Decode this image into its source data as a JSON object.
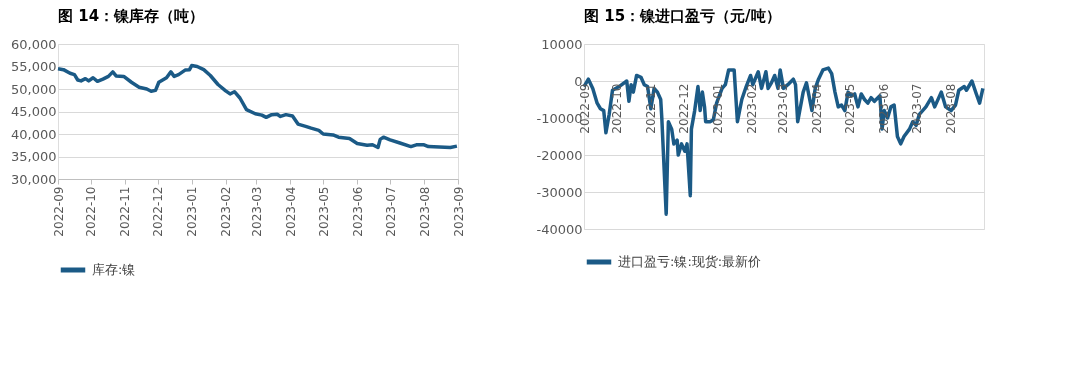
{
  "chart_data": [
    {
      "type": "line",
      "title": "图 14：镍库存（吨）",
      "xlim": [
        "2022-09",
        "2023-09"
      ],
      "xticks": [
        "2022-09",
        "2022-10",
        "2022-11",
        "2022-12",
        "2023-01",
        "2023-02",
        "2023-03",
        "2023-04",
        "2023-05",
        "2023-06",
        "2023-07",
        "2023-08",
        "2023-09"
      ],
      "ylim": [
        30000,
        60000
      ],
      "yticks": [
        {
          "value": 30000,
          "label": "30,000"
        },
        {
          "value": 35000,
          "label": "35,000"
        },
        {
          "value": 40000,
          "label": "40,000"
        },
        {
          "value": 45000,
          "label": "45,000"
        },
        {
          "value": 50000,
          "label": "50,000"
        },
        {
          "value": 55000,
          "label": "55,000"
        },
        {
          "value": 60000,
          "label": "60,000"
        }
      ],
      "grid": "y",
      "legend": "bottom",
      "line_style": "solid",
      "marker": "none",
      "x": [
        "2022-09-01",
        "2022-09-06",
        "2022-09-12",
        "2022-09-16",
        "2022-09-19",
        "2022-09-22",
        "2022-09-26",
        "2022-09-29",
        "2022-10-03",
        "2022-10-07",
        "2022-10-12",
        "2022-10-17",
        "2022-10-21",
        "2022-10-24",
        "2022-10-31",
        "2022-11-07",
        "2022-11-14",
        "2022-11-21",
        "2022-11-25",
        "2022-11-29",
        "2022-12-02",
        "2022-12-09",
        "2022-12-13",
        "2022-12-16",
        "2022-12-20",
        "2022-12-26",
        "2022-12-30",
        "2023-01-01",
        "2023-01-06",
        "2023-01-12",
        "2023-01-18",
        "2023-01-25",
        "2023-02-01",
        "2023-02-05",
        "2023-02-09",
        "2023-02-14",
        "2023-02-20",
        "2023-02-28",
        "2023-03-06",
        "2023-03-10",
        "2023-03-15",
        "2023-03-20",
        "2023-03-23",
        "2023-03-28",
        "2023-04-03",
        "2023-04-08",
        "2023-04-15",
        "2023-04-20",
        "2023-04-27",
        "2023-05-01",
        "2023-05-10",
        "2023-05-15",
        "2023-05-25",
        "2023-06-01",
        "2023-06-10",
        "2023-06-15",
        "2023-06-20",
        "2023-06-22",
        "2023-06-25",
        "2023-07-01",
        "2023-07-10",
        "2023-07-20",
        "2023-07-25",
        "2023-08-01",
        "2023-08-05",
        "2023-08-15",
        "2023-08-25",
        "2023-08-31"
      ],
      "series": [
        {
          "name": "库存:镍",
          "color": "#1b5a86",
          "values": [
            54500,
            54300,
            53500,
            53200,
            52000,
            51800,
            52300,
            51800,
            52500,
            51700,
            52200,
            52800,
            53800,
            52900,
            52800,
            51500,
            50400,
            50000,
            49500,
            49700,
            51500,
            52500,
            53800,
            52800,
            53200,
            54200,
            54300,
            55200,
            55000,
            54300,
            53000,
            51000,
            49600,
            48900,
            49400,
            48000,
            45400,
            44500,
            44200,
            43700,
            44300,
            44400,
            43900,
            44300,
            44000,
            42200,
            41700,
            41300,
            40800,
            40000,
            39800,
            39300,
            39000,
            37900,
            37500,
            37600,
            37000,
            38800,
            39300,
            38700,
            38000,
            37200,
            37600,
            37600,
            37200,
            37100,
            37000,
            37300
          ]
        }
      ]
    },
    {
      "type": "line",
      "title": "图 15：镍进口盈亏（元/吨）",
      "xlim": [
        "2022-09",
        "2023-09"
      ],
      "xticks": [
        "2022-09",
        "2022-10",
        "2022-11",
        "2022-12",
        "2023-01",
        "2023-02",
        "2023-03",
        "2023-04",
        "2023-05",
        "2023-06",
        "2023-07",
        "2023-08"
      ],
      "ylim": [
        -40000,
        10000
      ],
      "yticks": [
        -40000,
        -30000,
        -20000,
        -10000,
        0,
        10000
      ],
      "grid": "y",
      "legend": "bottom",
      "line_style": "solid",
      "marker": "none",
      "x": [
        "2022-09-01",
        "2022-09-05",
        "2022-09-09",
        "2022-09-13",
        "2022-09-16",
        "2022-09-19",
        "2022-09-21",
        "2022-09-24",
        "2022-09-27",
        "2022-10-03",
        "2022-10-10",
        "2022-10-12",
        "2022-10-14",
        "2022-10-16",
        "2022-10-19",
        "2022-10-23",
        "2022-10-26",
        "2022-10-29",
        "2022-11-01",
        "2022-11-04",
        "2022-11-07",
        "2022-11-10",
        "2022-11-11",
        "2022-11-15",
        "2022-11-17",
        "2022-11-20",
        "2022-11-22",
        "2022-11-25",
        "2022-11-26",
        "2022-11-29",
        "2022-12-02",
        "2022-12-04",
        "2022-12-07",
        "2022-12-08",
        "2022-12-11",
        "2022-12-14",
        "2022-12-16",
        "2022-12-18",
        "2022-12-20",
        "2022-12-21",
        "2022-12-25",
        "2022-12-28",
        "2022-12-31",
        "2023-01-05",
        "2023-01-08",
        "2023-01-11",
        "2023-01-14",
        "2023-01-16",
        "2023-01-19",
        "2023-01-23",
        "2023-01-27",
        "2023-01-31",
        "2023-02-02",
        "2023-02-07",
        "2023-02-10",
        "2023-02-14",
        "2023-02-16",
        "2023-02-19",
        "2023-02-22",
        "2023-02-25",
        "2023-02-27",
        "2023-03-02",
        "2023-03-06",
        "2023-03-11",
        "2023-03-13",
        "2023-03-15",
        "2023-03-20",
        "2023-03-23",
        "2023-03-28",
        "2023-03-31",
        "2023-04-03",
        "2023-04-07",
        "2023-04-12",
        "2023-04-15",
        "2023-04-18",
        "2023-04-21",
        "2023-04-24",
        "2023-04-27",
        "2023-04-30",
        "2023-05-03",
        "2023-05-06",
        "2023-05-09",
        "2023-05-12",
        "2023-05-15",
        "2023-05-18",
        "2023-05-21",
        "2023-05-24",
        "2023-05-29",
        "2023-05-31",
        "2023-06-02",
        "2023-06-05",
        "2023-06-08",
        "2023-06-11",
        "2023-06-14",
        "2023-06-17",
        "2023-06-20",
        "2023-06-25",
        "2023-06-28",
        "2023-07-01",
        "2023-07-04",
        "2023-07-10",
        "2023-07-15",
        "2023-07-18",
        "2023-07-24",
        "2023-07-28",
        "2023-08-02",
        "2023-08-06",
        "2023-08-09",
        "2023-08-14",
        "2023-08-16",
        "2023-08-21",
        "2023-08-25",
        "2023-08-28",
        "2023-08-31"
      ],
      "series": [
        {
          "name": "进口盈亏:镍:现货:最新价",
          "color": "#1b5a86",
          "values": [
            -1500,
            500,
            -2000,
            -6000,
            -7500,
            -8000,
            -14000,
            -9000,
            -2500,
            -1500,
            0,
            -5500,
            -1000,
            -3000,
            1500,
            1000,
            -1000,
            -1500,
            -7500,
            -2000,
            -3000,
            -5000,
            -10000,
            -36000,
            -11000,
            -13000,
            -17000,
            -16000,
            -20000,
            -17000,
            -19000,
            -17000,
            -31000,
            -13000,
            -8000,
            -1500,
            -8000,
            -3000,
            -7000,
            -11000,
            -11000,
            -10500,
            -6000,
            -2000,
            -1000,
            3000,
            3000,
            3000,
            -11000,
            -5000,
            -1500,
            1500,
            -1000,
            2500,
            -2000,
            2500,
            -2000,
            -500,
            1500,
            -2000,
            3000,
            -2000,
            -1000,
            500,
            -1000,
            -11000,
            -3000,
            -500,
            -8000,
            -2000,
            500,
            3000,
            3500,
            2000,
            -3000,
            -7000,
            -6500,
            -8000,
            -3000,
            -4000,
            -3500,
            -7000,
            -3500,
            -5000,
            -6000,
            -4500,
            -5500,
            -4000,
            -13000,
            -8000,
            -10000,
            -7000,
            -6500,
            -15000,
            -17000,
            -15000,
            -13000,
            -11000,
            -12000,
            -9000,
            -7000,
            -4500,
            -7000,
            -3000,
            -7000,
            -8000,
            -6500,
            -2500,
            -1500,
            -2500,
            0,
            -3500,
            -6000,
            -2000
          ]
        }
      ]
    }
  ]
}
